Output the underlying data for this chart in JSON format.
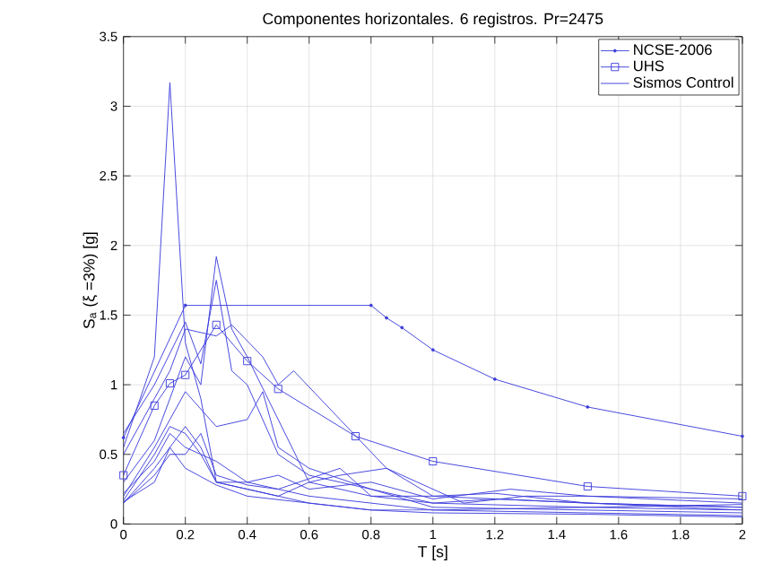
{
  "chart_data": {
    "type": "line",
    "title": "Componentes horizontales. 6 registros. Pr=2475",
    "xlabel": "T [s]",
    "ylabel": "S$_{a}$ (ξ =3%) [g]",
    "xlim": [
      0,
      2
    ],
    "ylim": [
      0,
      3.5
    ],
    "xticks": [
      0,
      0.2,
      0.4,
      0.6,
      0.8,
      1,
      1.2,
      1.4,
      1.6,
      1.8,
      2
    ],
    "yticks": [
      0,
      0.5,
      1,
      1.5,
      2,
      2.5,
      3,
      3.5
    ],
    "grid": true,
    "legend": "top right",
    "line_style": "solid",
    "series": [
      {
        "name": "NCSE-2006",
        "color": "#3c3cdc",
        "marker": "circle",
        "x": [
          0,
          0.2,
          0.8,
          0.85,
          0.9,
          1,
          1.2,
          1.5,
          2
        ],
        "values": [
          0.62,
          1.57,
          1.57,
          1.48,
          1.41,
          1.25,
          1.04,
          0.84,
          0.63
        ]
      },
      {
        "name": "UHS",
        "color": "#3c3cdc",
        "marker": "square",
        "x": [
          0,
          0.1,
          0.15,
          0.2,
          0.3,
          0.4,
          0.5,
          0.75,
          1,
          1.5,
          2
        ],
        "values": [
          0.35,
          0.85,
          1.01,
          1.07,
          1.43,
          1.17,
          0.97,
          0.63,
          0.45,
          0.27,
          0.2
        ]
      },
      {
        "name": "Sismos Control",
        "color": "#3c3cdc",
        "marker": "none",
        "x": [
          0,
          0.1,
          0.15,
          0.2,
          0.25,
          0.3,
          0.4,
          0.5,
          0.6,
          0.8,
          1,
          1.5,
          2
        ],
        "values": [
          0.55,
          1.2,
          3.17,
          1.3,
          0.9,
          0.3,
          0.25,
          0.2,
          0.15,
          0.1,
          0.08,
          0.07,
          0.05
        ]
      },
      {
        "color": "#3c3cdc",
        "marker": "none",
        "x": [
          0,
          0.1,
          0.2,
          0.25,
          0.3,
          0.35,
          0.4,
          0.5,
          0.6,
          0.8,
          1,
          1.2,
          1.5,
          2
        ],
        "values": [
          0.3,
          0.6,
          1.2,
          1.0,
          1.92,
          1.4,
          1.2,
          0.75,
          0.3,
          0.2,
          0.2,
          0.22,
          0.15,
          0.1
        ]
      },
      {
        "color": "#3c3cdc",
        "marker": "none",
        "x": [
          0,
          0.1,
          0.2,
          0.25,
          0.3,
          0.35,
          0.4,
          0.5,
          0.6,
          0.8,
          1,
          1.5,
          2
        ],
        "values": [
          0.65,
          1.0,
          1.45,
          1.15,
          1.75,
          1.1,
          1.0,
          0.5,
          0.35,
          0.25,
          0.15,
          0.12,
          0.1
        ]
      },
      {
        "color": "#3c3cdc",
        "marker": "none",
        "x": [
          0,
          0.1,
          0.15,
          0.2,
          0.3,
          0.35,
          0.45,
          0.5,
          0.55,
          0.7,
          0.85,
          1,
          1.5,
          2
        ],
        "values": [
          0.5,
          0.9,
          1.1,
          1.4,
          1.35,
          1.43,
          1.2,
          1.0,
          1.1,
          0.75,
          0.4,
          0.2,
          0.15,
          0.12
        ]
      },
      {
        "color": "#3c3cdc",
        "marker": "none",
        "x": [
          0,
          0.1,
          0.15,
          0.2,
          0.3,
          0.4,
          0.45,
          0.5,
          0.6,
          0.8,
          1,
          1.5,
          2
        ],
        "values": [
          0.2,
          0.55,
          0.75,
          0.95,
          0.7,
          0.75,
          0.95,
          0.55,
          0.4,
          0.25,
          0.12,
          0.1,
          0.08
        ]
      },
      {
        "color": "#3c3cdc",
        "marker": "none",
        "x": [
          0,
          0.1,
          0.15,
          0.2,
          0.25,
          0.3,
          0.4,
          0.5,
          0.7,
          0.8,
          1,
          1.2,
          1.5,
          2
        ],
        "values": [
          0.17,
          0.5,
          0.7,
          0.65,
          0.5,
          0.3,
          0.3,
          0.25,
          0.4,
          0.2,
          0.15,
          0.18,
          0.15,
          0.12
        ]
      },
      {
        "color": "#3c3cdc",
        "marker": "none",
        "x": [
          0,
          0.1,
          0.15,
          0.2,
          0.25,
          0.3,
          0.4,
          0.5,
          0.6,
          0.7,
          0.85,
          0.95,
          1.1,
          1.3,
          1.5,
          2
        ],
        "values": [
          0.15,
          0.4,
          0.55,
          0.7,
          0.55,
          0.3,
          0.25,
          0.2,
          0.3,
          0.35,
          0.4,
          0.3,
          0.15,
          0.2,
          0.2,
          0.15
        ]
      },
      {
        "color": "#3c3cdc",
        "marker": "none",
        "x": [
          0,
          0.1,
          0.15,
          0.2,
          0.25,
          0.3,
          0.4,
          0.5,
          0.6,
          0.8,
          1,
          1.5,
          2
        ],
        "values": [
          0.15,
          0.35,
          0.5,
          0.5,
          0.65,
          0.35,
          0.28,
          0.25,
          0.2,
          0.15,
          0.1,
          0.08,
          0.06
        ]
      },
      {
        "color": "#3c3cdc",
        "marker": "none",
        "x": [
          0,
          0.1,
          0.15,
          0.2,
          0.3,
          0.4,
          0.5,
          0.6,
          0.8,
          1,
          1.25,
          1.5,
          2
        ],
        "values": [
          0.22,
          0.45,
          0.65,
          0.55,
          0.45,
          0.3,
          0.35,
          0.25,
          0.3,
          0.18,
          0.25,
          0.2,
          0.18
        ]
      },
      {
        "color": "#3c3cdc",
        "marker": "none",
        "x": [
          0,
          0.1,
          0.15,
          0.2,
          0.3,
          0.4,
          0.6,
          0.8,
          1,
          1.5,
          2
        ],
        "values": [
          0.16,
          0.3,
          0.55,
          0.4,
          0.28,
          0.2,
          0.15,
          0.1,
          0.1,
          0.12,
          0.14
        ]
      }
    ]
  }
}
